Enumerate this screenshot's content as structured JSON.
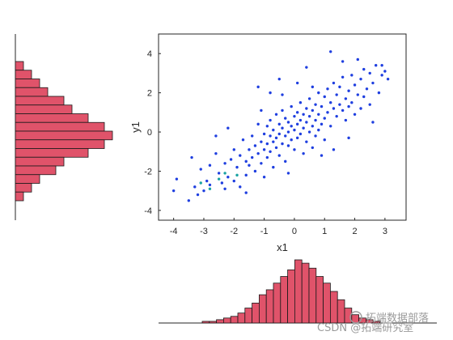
{
  "chart_data": [
    {
      "type": "scatter",
      "title": "",
      "xlabel": "x1",
      "ylabel": "y1",
      "xlim": [
        -4.5,
        3.7
      ],
      "ylim": [
        -4.5,
        5
      ],
      "xticks": [
        "-4",
        "-3",
        "-2",
        "-1",
        "0",
        "1",
        "2",
        "3"
      ],
      "yticks": [
        "-4",
        "-2",
        "0",
        "2",
        "4"
      ],
      "grid": false,
      "legend": "none",
      "marker_color": "#1f3fe0",
      "points": [
        [
          -4.0,
          -3.0
        ],
        [
          -3.9,
          -2.4
        ],
        [
          -3.5,
          -3.5
        ],
        [
          -3.3,
          -2.8
        ],
        [
          -3.2,
          -3.2
        ],
        [
          -3.1,
          -1.9
        ],
        [
          -3.0,
          -3.0
        ],
        [
          -2.9,
          -2.5
        ],
        [
          -2.8,
          -2.7
        ],
        [
          -2.6,
          -1.1
        ],
        [
          -2.5,
          -2.1
        ],
        [
          -2.4,
          -2.6
        ],
        [
          -2.3,
          -1.6
        ],
        [
          -2.3,
          -2.9
        ],
        [
          -2.2,
          -2.3
        ],
        [
          -2.1,
          -1.4
        ],
        [
          -2.0,
          -0.9
        ],
        [
          -2.0,
          -2.5
        ],
        [
          -1.9,
          -1.8
        ],
        [
          -1.8,
          -1.2
        ],
        [
          -1.8,
          -2.8
        ],
        [
          -1.7,
          -0.4
        ],
        [
          -1.6,
          -1.5
        ],
        [
          -1.6,
          -2.2
        ],
        [
          -1.5,
          -0.9
        ],
        [
          -1.5,
          -1.7
        ],
        [
          -1.4,
          -0.2
        ],
        [
          -1.4,
          -1.3
        ],
        [
          -1.3,
          -0.7
        ],
        [
          -1.3,
          -2.0
        ],
        [
          -1.2,
          -1.1
        ],
        [
          -1.2,
          0.4
        ],
        [
          -1.1,
          -0.5
        ],
        [
          -1.1,
          -1.6
        ],
        [
          -1.0,
          -0.1
        ],
        [
          -1.0,
          -0.9
        ],
        [
          -1.0,
          -2.3
        ],
        [
          -0.9,
          0.3
        ],
        [
          -0.9,
          -0.6
        ],
        [
          -0.9,
          -1.3
        ],
        [
          -0.8,
          0.6
        ],
        [
          -0.8,
          -0.2
        ],
        [
          -0.8,
          -1.0
        ],
        [
          -0.7,
          0.1
        ],
        [
          -0.7,
          -0.5
        ],
        [
          -0.7,
          -1.8
        ],
        [
          -0.6,
          0.9
        ],
        [
          -0.6,
          -0.3
        ],
        [
          -0.6,
          -0.8
        ],
        [
          -0.5,
          0.4
        ],
        [
          -0.5,
          -0.1
        ],
        [
          -0.5,
          -1.2
        ],
        [
          -0.4,
          1.1
        ],
        [
          -0.4,
          0.2
        ],
        [
          -0.4,
          -0.6
        ],
        [
          -0.3,
          0.7
        ],
        [
          -0.3,
          -0.2
        ],
        [
          -0.3,
          -1.5
        ],
        [
          -0.2,
          0.5
        ],
        [
          -0.2,
          0.0
        ],
        [
          -0.2,
          -0.7
        ],
        [
          -0.1,
          1.3
        ],
        [
          -0.1,
          0.3
        ],
        [
          -0.1,
          -0.4
        ],
        [
          0.0,
          0.8
        ],
        [
          0.0,
          0.1
        ],
        [
          0.0,
          -0.9
        ],
        [
          0.1,
          1.0
        ],
        [
          0.1,
          0.4
        ],
        [
          0.1,
          -0.3
        ],
        [
          0.2,
          1.5
        ],
        [
          0.2,
          0.6
        ],
        [
          0.2,
          -0.1
        ],
        [
          0.3,
          0.9
        ],
        [
          0.3,
          0.2
        ],
        [
          0.3,
          -1.1
        ],
        [
          0.4,
          1.2
        ],
        [
          0.4,
          0.5
        ],
        [
          0.4,
          -0.5
        ],
        [
          0.5,
          1.7
        ],
        [
          0.5,
          0.8
        ],
        [
          0.5,
          0.0
        ],
        [
          0.6,
          1.1
        ],
        [
          0.6,
          0.3
        ],
        [
          0.6,
          -0.8
        ],
        [
          0.7,
          1.4
        ],
        [
          0.7,
          0.6
        ],
        [
          0.7,
          -0.2
        ],
        [
          0.8,
          2.0
        ],
        [
          0.8,
          0.9
        ],
        [
          0.8,
          0.1
        ],
        [
          0.9,
          1.3
        ],
        [
          0.9,
          0.4
        ],
        [
          1.0,
          1.8
        ],
        [
          1.0,
          0.7
        ],
        [
          1.0,
          -0.4
        ],
        [
          1.1,
          2.2
        ],
        [
          1.1,
          1.0
        ],
        [
          1.2,
          1.5
        ],
        [
          1.2,
          0.3
        ],
        [
          1.3,
          2.5
        ],
        [
          1.3,
          1.2
        ],
        [
          1.4,
          1.9
        ],
        [
          1.4,
          0.8
        ],
        [
          1.5,
          2.3
        ],
        [
          1.5,
          1.4
        ],
        [
          1.6,
          1.1
        ],
        [
          1.6,
          2.8
        ],
        [
          1.7,
          1.7
        ],
        [
          1.7,
          0.6
        ],
        [
          1.8,
          2.1
        ],
        [
          1.8,
          1.3
        ],
        [
          1.9,
          2.9
        ],
        [
          1.9,
          1.5
        ],
        [
          2.0,
          2.4
        ],
        [
          2.0,
          0.9
        ],
        [
          2.1,
          1.9
        ],
        [
          2.2,
          2.7
        ],
        [
          2.2,
          1.2
        ],
        [
          2.3,
          3.2
        ],
        [
          2.3,
          1.8
        ],
        [
          2.4,
          2.2
        ],
        [
          2.5,
          3.0
        ],
        [
          2.5,
          1.4
        ],
        [
          2.6,
          2.5
        ],
        [
          2.7,
          3.4
        ],
        [
          2.8,
          2.0
        ],
        [
          2.9,
          2.9
        ],
        [
          3.0,
          3.1
        ],
        [
          3.1,
          2.7
        ],
        [
          1.2,
          4.1
        ],
        [
          1.6,
          3.6
        ],
        [
          0.4,
          3.3
        ],
        [
          -0.5,
          2.7
        ],
        [
          -1.2,
          2.3
        ],
        [
          -2.2,
          0.2
        ],
        [
          -2.6,
          -0.2
        ],
        [
          -3.4,
          -1.3
        ],
        [
          -0.8,
          2.0
        ],
        [
          0.1,
          2.5
        ],
        [
          1.8,
          -0.3
        ],
        [
          2.6,
          0.5
        ],
        [
          1.3,
          -0.9
        ],
        [
          -0.2,
          -2.1
        ],
        [
          -1.6,
          -3.1
        ],
        [
          -2.8,
          -1.7
        ],
        [
          0.6,
          2.3
        ],
        [
          2.1,
          3.7
        ],
        [
          2.9,
          3.4
        ],
        [
          -1.1,
          1.1
        ],
        [
          0.9,
          -1.2
        ],
        [
          -0.4,
          1.9
        ]
      ],
      "highlight_points": [
        [
          -3.1,
          -2.6
        ],
        [
          -2.8,
          -2.9
        ],
        [
          -2.5,
          -2.4
        ],
        [
          -2.3,
          -2.1
        ],
        [
          -1.9,
          -2.2
        ]
      ],
      "highlight_color": "#1aa3a3"
    },
    {
      "type": "bar",
      "orientation": "horizontal",
      "title": "",
      "xlabel": "",
      "ylabel": "",
      "bar_color": "#e0536a",
      "edge_color": "#1a1a1a",
      "values": [
        1,
        2,
        3,
        4,
        6,
        7,
        9,
        11,
        12,
        11,
        9,
        6,
        5,
        3,
        2,
        1
      ]
    },
    {
      "type": "bar",
      "orientation": "vertical",
      "title": "",
      "xlabel": "",
      "ylabel": "",
      "bar_color": "#e0536a",
      "edge_color": "#1a1a1a",
      "values": [
        1,
        1,
        2,
        3,
        4,
        6,
        9,
        12,
        17,
        20,
        24,
        28,
        32,
        38,
        36,
        33,
        28,
        24,
        19,
        14,
        9,
        5,
        3,
        2,
        1
      ]
    }
  ],
  "watermark": {
    "text1": "拓端数据部落",
    "text2": "CSDN @拓端研究室"
  }
}
